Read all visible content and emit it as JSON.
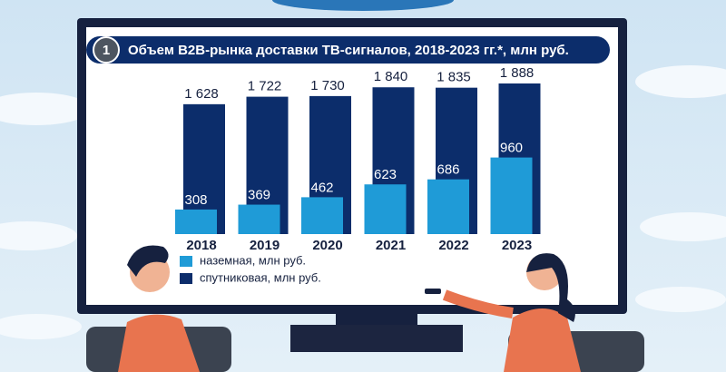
{
  "chart_data": {
    "type": "bar",
    "badge": "1",
    "title": "Объем B2B-рынка доставки ТВ-сигналов, 2018-2023 гг.*, млн руб.",
    "categories": [
      "2018",
      "2019",
      "2020",
      "2021",
      "2022",
      "2023"
    ],
    "series": [
      {
        "name": "спутниковая, млн руб.",
        "color": "#0c2d6b",
        "values": [
          1628,
          1722,
          1730,
          1840,
          1835,
          1888
        ],
        "value_labels": [
          "1 628",
          "1 722",
          "1 730",
          "1 840",
          "1 835",
          "1 888"
        ]
      },
      {
        "name": "наземная, млн руб.",
        "color": "#1f9bd7",
        "values": [
          308,
          369,
          462,
          623,
          686,
          960
        ]
      }
    ],
    "legend_order": [
      1,
      0
    ]
  }
}
